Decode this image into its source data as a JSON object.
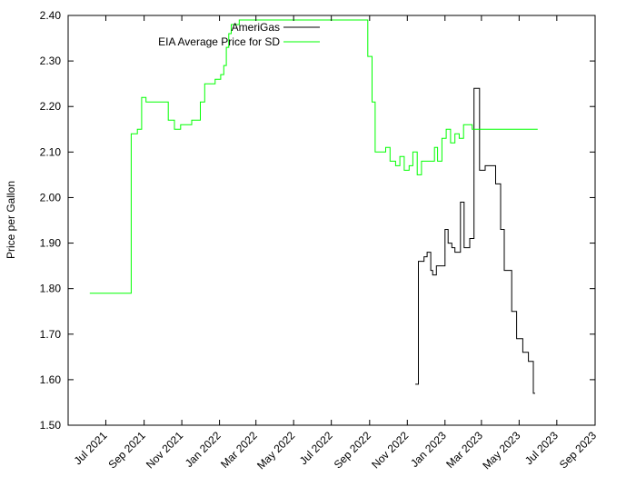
{
  "chart_data": {
    "type": "line",
    "title": "",
    "xlabel": "",
    "ylabel": "Price per Gallon",
    "xlim": [
      "2021-05-01",
      "2023-09-01"
    ],
    "ylim": [
      1.5,
      2.4
    ],
    "grid": false,
    "legend_position": "top-center",
    "x_ticks": [
      "Jul 2021",
      "Sep 2021",
      "Nov 2021",
      "Jan 2022",
      "Mar 2022",
      "May 2022",
      "Jul 2022",
      "Sep 2022",
      "Nov 2022",
      "Jan 2023",
      "Mar 2023",
      "May 2023",
      "Jul 2023",
      "Sep 2023"
    ],
    "y_ticks": [
      "1.50",
      "1.60",
      "1.70",
      "1.80",
      "1.90",
      "2.00",
      "2.10",
      "2.20",
      "2.30",
      "2.40"
    ],
    "series": [
      {
        "name": "AmeriGas",
        "color": "#000000",
        "points": [
          [
            "2022-11-14",
            1.59
          ],
          [
            "2022-11-18",
            1.59
          ],
          [
            "2022-11-19",
            1.86
          ],
          [
            "2022-11-28",
            1.87
          ],
          [
            "2022-12-03",
            1.88
          ],
          [
            "2022-12-09",
            1.84
          ],
          [
            "2022-12-12",
            1.83
          ],
          [
            "2022-12-18",
            1.85
          ],
          [
            "2022-12-31",
            1.85
          ],
          [
            "2023-01-01",
            1.93
          ],
          [
            "2023-01-06",
            1.9
          ],
          [
            "2023-01-12",
            1.89
          ],
          [
            "2023-01-17",
            1.88
          ],
          [
            "2023-01-26",
            1.99
          ],
          [
            "2023-02-01",
            1.89
          ],
          [
            "2023-02-10",
            1.91
          ],
          [
            "2023-02-17",
            2.24
          ],
          [
            "2023-02-26",
            2.06
          ],
          [
            "2023-03-07",
            2.07
          ],
          [
            "2023-03-24",
            2.03
          ],
          [
            "2023-04-01",
            1.93
          ],
          [
            "2023-04-07",
            1.84
          ],
          [
            "2023-04-19",
            1.75
          ],
          [
            "2023-04-27",
            1.69
          ],
          [
            "2023-05-07",
            1.66
          ],
          [
            "2023-05-16",
            1.64
          ],
          [
            "2023-05-24",
            1.57
          ],
          [
            "2023-05-27",
            1.57
          ]
        ]
      },
      {
        "name": "EIA Average Price for SD",
        "color": "#00ff00",
        "points": [
          [
            "2021-06-05",
            1.79
          ],
          [
            "2021-08-10",
            1.79
          ],
          [
            "2021-08-11",
            2.14
          ],
          [
            "2021-08-21",
            2.15
          ],
          [
            "2021-08-28",
            2.22
          ],
          [
            "2021-09-04",
            2.21
          ],
          [
            "2021-09-30",
            2.21
          ],
          [
            "2021-10-10",
            2.17
          ],
          [
            "2021-10-20",
            2.15
          ],
          [
            "2021-10-30",
            2.16
          ],
          [
            "2021-11-10",
            2.16
          ],
          [
            "2021-11-17",
            2.17
          ],
          [
            "2021-11-24",
            2.17
          ],
          [
            "2021-12-01",
            2.21
          ],
          [
            "2021-12-08",
            2.25
          ],
          [
            "2021-12-17",
            2.25
          ],
          [
            "2021-12-25",
            2.26
          ],
          [
            "2022-01-03",
            2.27
          ],
          [
            "2022-01-08",
            2.29
          ],
          [
            "2022-01-12",
            2.33
          ],
          [
            "2022-01-16",
            2.36
          ],
          [
            "2022-01-20",
            2.38
          ],
          [
            "2022-02-02",
            2.39
          ],
          [
            "2022-08-22",
            2.39
          ],
          [
            "2022-08-29",
            2.31
          ],
          [
            "2022-09-05",
            2.21
          ],
          [
            "2022-09-10",
            2.1
          ],
          [
            "2022-09-27",
            2.11
          ],
          [
            "2022-10-04",
            2.08
          ],
          [
            "2022-10-13",
            2.07
          ],
          [
            "2022-10-20",
            2.09
          ],
          [
            "2022-10-27",
            2.06
          ],
          [
            "2022-11-04",
            2.07
          ],
          [
            "2022-11-10",
            2.1
          ],
          [
            "2022-11-17",
            2.05
          ],
          [
            "2022-11-24",
            2.08
          ],
          [
            "2022-12-08",
            2.08
          ],
          [
            "2022-12-15",
            2.11
          ],
          [
            "2022-12-20",
            2.08
          ],
          [
            "2022-12-27",
            2.13
          ],
          [
            "2023-01-03",
            2.15
          ],
          [
            "2023-01-10",
            2.12
          ],
          [
            "2023-01-17",
            2.14
          ],
          [
            "2023-01-24",
            2.13
          ],
          [
            "2023-01-31",
            2.16
          ],
          [
            "2023-02-07",
            2.16
          ],
          [
            "2023-02-14",
            2.15
          ],
          [
            "2023-05-31",
            2.15
          ]
        ]
      }
    ]
  }
}
